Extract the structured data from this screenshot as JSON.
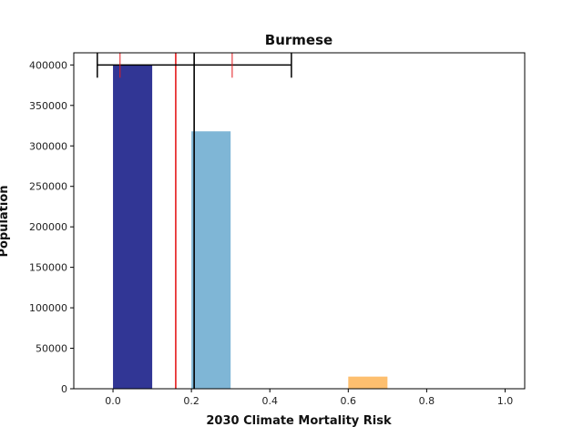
{
  "chart_data": {
    "type": "bar",
    "title": "Burmese",
    "xlabel": "2030 Climate Mortality Risk",
    "ylabel": "Population",
    "xlim": [
      -0.1,
      1.05
    ],
    "ylim": [
      0,
      415000
    ],
    "xticks": [
      "0.0",
      "0.2",
      "0.4",
      "0.6",
      "0.8",
      "1.0"
    ],
    "yticks": [
      "0",
      "50000",
      "100000",
      "150000",
      "200000",
      "250000",
      "300000",
      "350000",
      "400000"
    ],
    "bars": [
      {
        "x0": 0.0,
        "x1": 0.1,
        "value": 400000,
        "color": "#313695"
      },
      {
        "x0": 0.2,
        "x1": 0.3,
        "value": 318000,
        "color": "#7fb6d6"
      },
      {
        "x0": 0.6,
        "x1": 0.7,
        "value": 15000,
        "color": "#fdbf6f"
      }
    ],
    "lines": {
      "red_mean": 0.16,
      "black_mean": 0.207,
      "red_interval": [
        0.018,
        0.304
      ],
      "black_interval": [
        -0.04,
        0.455
      ],
      "interval_y": 400000
    },
    "colors": {
      "red": "#e41a1c",
      "black": "#000000",
      "axis": "#000000"
    },
    "grid": false
  }
}
